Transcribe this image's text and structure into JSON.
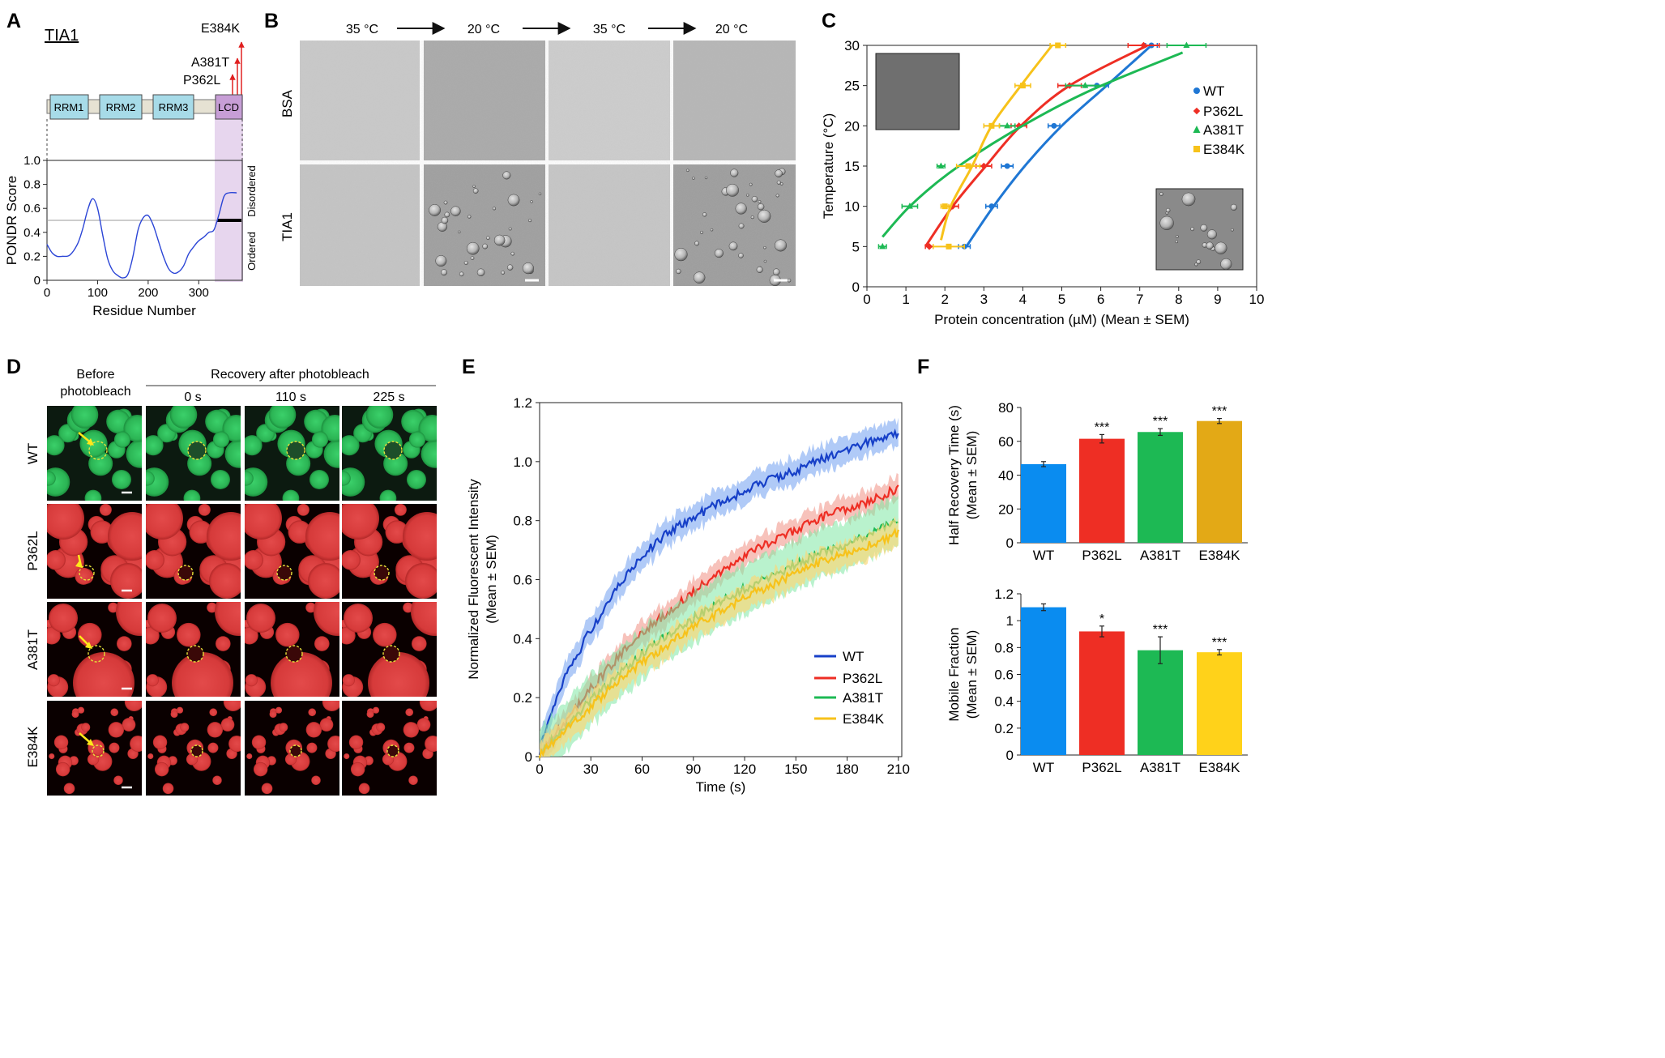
{
  "panels": {
    "a": "A",
    "b": "B",
    "c": "C",
    "d": "D",
    "e": "E",
    "f": "F"
  },
  "panel_a": {
    "title": "TIA1",
    "domains": [
      "RRM1",
      "RRM2",
      "RRM3",
      "LCD"
    ],
    "mutations": [
      "E384K",
      "A381T",
      "P362L"
    ],
    "ylabel": "PONDR Score",
    "xlabel": "Residue Number",
    "side_top": "Disordered",
    "side_bottom": "Ordered",
    "yticks": [
      "0",
      "0.2",
      "0.4",
      "0.6",
      "0.8",
      "1.0"
    ],
    "xticks": [
      "0",
      "100",
      "200",
      "300"
    ]
  },
  "panel_b": {
    "temps": [
      "35 °C",
      "20 °C",
      "35 °C",
      "20 °C"
    ],
    "rows": [
      "BSA",
      "TIA1"
    ]
  },
  "panel_d": {
    "before": "Before photobleach",
    "recovery": "Recovery after photobleach",
    "times": [
      "0 s",
      "110 s",
      "225 s"
    ],
    "rows": [
      "WT",
      "P362L",
      "A381T",
      "E384K"
    ]
  },
  "colors": {
    "wt": "#1f77d4",
    "p362l": "#ee2e24",
    "a381t": "#1db954",
    "e384k": "#f7c21a",
    "wt_line": "#1740c8",
    "f_wt": "#0a8cf0",
    "f_e384k_top": "#e3a916",
    "f_e384k_bottom": "#ffd21a"
  },
  "chart_data": [
    {
      "panel": "A",
      "type": "line",
      "title": "TIA1",
      "xlabel": "Residue Number",
      "ylabel": "PONDR Score",
      "xlim": [
        0,
        386
      ],
      "ylim": [
        0,
        1.0
      ],
      "threshold": 0.5,
      "series": [
        {
          "x": [
            0,
            10,
            20,
            30,
            45,
            60,
            70,
            80,
            90,
            100,
            110,
            120,
            130,
            140,
            150,
            160,
            170,
            180,
            190,
            200,
            210,
            220,
            230,
            240,
            250,
            260,
            270,
            280,
            290,
            300,
            310,
            320,
            330,
            340,
            350,
            360,
            375
          ],
          "values": [
            0.3,
            0.23,
            0.2,
            0.2,
            0.21,
            0.3,
            0.42,
            0.58,
            0.68,
            0.6,
            0.38,
            0.18,
            0.08,
            0.04,
            0.02,
            0.05,
            0.2,
            0.42,
            0.52,
            0.54,
            0.46,
            0.33,
            0.2,
            0.1,
            0.06,
            0.07,
            0.12,
            0.22,
            0.28,
            0.33,
            0.36,
            0.4,
            0.42,
            0.55,
            0.7,
            0.73,
            0.73
          ]
        }
      ]
    },
    {
      "panel": "C",
      "type": "line",
      "xlabel": "Protein concentration (µM)  (Mean ± SEM)",
      "ylabel": "Temperature (°C)",
      "xlim": [
        0,
        10
      ],
      "ylim": [
        0,
        30
      ],
      "xticks": [
        "0",
        "1",
        "2",
        "3",
        "4",
        "5",
        "6",
        "7",
        "8",
        "9",
        "10"
      ],
      "yticks": [
        "0",
        "5",
        "10",
        "15",
        "20",
        "25",
        "30"
      ],
      "legend_position": "right",
      "series": [
        {
          "name": "WT",
          "x": [
            2.5,
            3.2,
            3.6,
            4.8,
            5.9,
            7.3
          ],
          "y": [
            5,
            10,
            15,
            20,
            25,
            30
          ],
          "err": [
            0.15,
            0.15,
            0.15,
            0.15,
            0.3,
            0.15
          ],
          "curve": [
            [
              2.55,
              5
            ],
            [
              3.25,
              10
            ],
            [
              4.05,
              15
            ],
            [
              5.0,
              20
            ],
            [
              6.15,
              25
            ],
            [
              7.3,
              30
            ]
          ]
        },
        {
          "name": "P362L",
          "x": [
            1.6,
            2.2,
            3.0,
            3.9,
            5.2,
            7.1
          ],
          "y": [
            5,
            10,
            15,
            20,
            25,
            30
          ],
          "err": [
            0.1,
            0.15,
            0.2,
            0.2,
            0.3,
            0.4
          ],
          "curve": [
            [
              1.5,
              5
            ],
            [
              2.2,
              10
            ],
            [
              3.05,
              15
            ],
            [
              3.95,
              20
            ],
            [
              5.2,
              25
            ],
            [
              7.2,
              30
            ]
          ]
        },
        {
          "name": "A381T",
          "x": [
            0.4,
            1.1,
            1.9,
            3.6,
            5.6,
            8.2
          ],
          "y": [
            5,
            10,
            15,
            20,
            25,
            30
          ],
          "err": [
            0.1,
            0.2,
            0.1,
            0.2,
            0.5,
            0.5
          ],
          "curve": [
            [
              0.4,
              6.2
            ],
            [
              1.1,
              10
            ],
            [
              2.1,
              14.1
            ],
            [
              3.6,
              18.9
            ],
            [
              5.6,
              24.1
            ],
            [
              8.1,
              29.1
            ]
          ]
        },
        {
          "name": "E384K",
          "x": [
            2.1,
            2.0,
            2.6,
            3.2,
            4.0,
            4.9
          ],
          "y": [
            5,
            10,
            15,
            20,
            25,
            30
          ],
          "err": [
            0.4,
            0.1,
            0.3,
            0.2,
            0.2,
            0.2
          ],
          "curve": [
            [
              1.9,
              5.8
            ],
            [
              2.15,
              10
            ],
            [
              2.7,
              15
            ],
            [
              3.2,
              20
            ],
            [
              3.95,
              25
            ],
            [
              4.75,
              30
            ]
          ]
        }
      ]
    },
    {
      "panel": "E",
      "type": "line",
      "xlabel": "Time (s)",
      "ylabel": "Normalized Fluorescent Intensity (Mean ± SEM)",
      "xlim": [
        0,
        212
      ],
      "ylim": [
        0,
        1.2
      ],
      "xticks": [
        "0",
        "30",
        "60",
        "90",
        "120",
        "150",
        "180",
        "210"
      ],
      "yticks": [
        "0",
        "0.2",
        "0.4",
        "0.6",
        "0.8",
        "1.0",
        "1.2"
      ],
      "legend_position": "bottom-right",
      "series": [
        {
          "name": "WT",
          "x": [
            0,
            5,
            15,
            30,
            45,
            60,
            75,
            90,
            105,
            120,
            135,
            150,
            165,
            180,
            195,
            210
          ],
          "values": [
            0.02,
            0.12,
            0.27,
            0.43,
            0.57,
            0.68,
            0.76,
            0.81,
            0.86,
            0.9,
            0.94,
            0.97,
            1.01,
            1.04,
            1.07,
            1.1
          ],
          "err": 0.045
        },
        {
          "name": "P362L",
          "x": [
            0,
            10,
            30,
            45,
            60,
            75,
            90,
            105,
            120,
            135,
            150,
            165,
            180,
            195,
            210
          ],
          "values": [
            0.01,
            0.08,
            0.23,
            0.33,
            0.42,
            0.49,
            0.56,
            0.62,
            0.68,
            0.73,
            0.77,
            0.81,
            0.84,
            0.87,
            0.91
          ],
          "err": 0.04
        },
        {
          "name": "A381T",
          "x": [
            0,
            10,
            30,
            45,
            60,
            75,
            90,
            105,
            120,
            135,
            150,
            165,
            180,
            195,
            210
          ],
          "values": [
            0.01,
            0.07,
            0.19,
            0.27,
            0.35,
            0.41,
            0.47,
            0.52,
            0.57,
            0.61,
            0.65,
            0.69,
            0.72,
            0.76,
            0.8
          ],
          "err": 0.085
        },
        {
          "name": "E384K",
          "x": [
            0,
            10,
            30,
            45,
            60,
            75,
            90,
            105,
            120,
            135,
            150,
            165,
            180,
            195,
            210
          ],
          "values": [
            0.01,
            0.06,
            0.17,
            0.25,
            0.32,
            0.38,
            0.44,
            0.49,
            0.54,
            0.58,
            0.62,
            0.66,
            0.69,
            0.72,
            0.76
          ],
          "err": 0.045
        }
      ]
    },
    {
      "panel": "F-top",
      "type": "bar",
      "ylabel": "Half Recovery Time (s) (Mean ± SEM)",
      "categories": [
        "WT",
        "P362L",
        "A381T",
        "E384K"
      ],
      "values": [
        46.5,
        61.5,
        65.5,
        72
      ],
      "errors": [
        1.5,
        2.5,
        2,
        1.5
      ],
      "significance": [
        "",
        "***",
        "***",
        "***"
      ],
      "ylim": [
        0,
        80
      ],
      "yticks": [
        "0",
        "20",
        "40",
        "60",
        "80"
      ]
    },
    {
      "panel": "F-bottom",
      "type": "bar",
      "ylabel": "Mobile Fraction (Mean ± SEM)",
      "categories": [
        "WT",
        "P362L",
        "A381T",
        "E384K"
      ],
      "values": [
        1.1,
        0.92,
        0.78,
        0.765
      ],
      "errors": [
        0.025,
        0.04,
        0.1,
        0.02
      ],
      "significance": [
        "",
        "*",
        "***",
        "***"
      ],
      "ylim": [
        0,
        1.2
      ],
      "yticks": [
        "0",
        "0.2",
        "0.4",
        "0.6",
        "0.8",
        "1",
        "1.2"
      ]
    }
  ]
}
